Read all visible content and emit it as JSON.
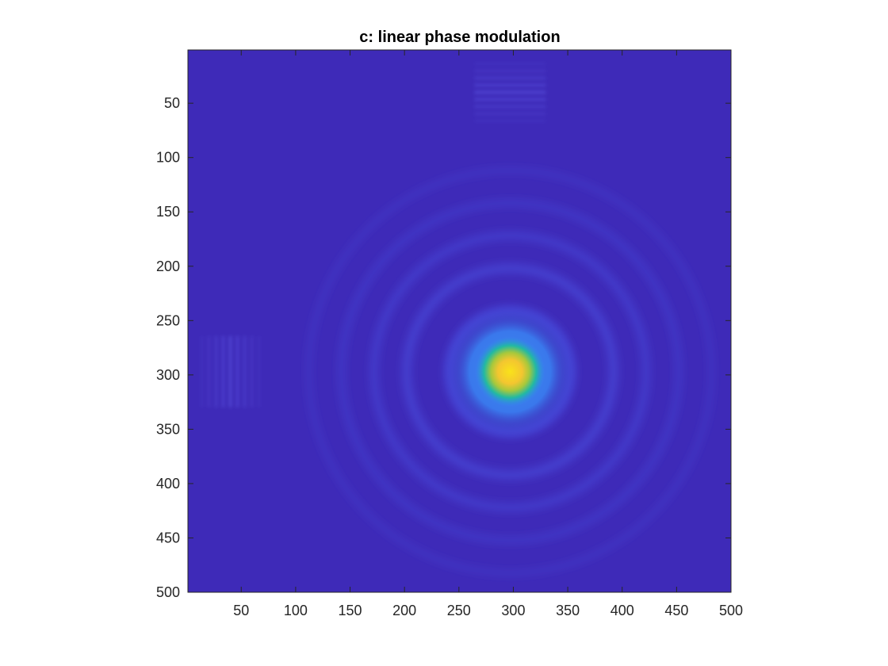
{
  "chart_data": {
    "type": "heatmap",
    "title": "c: linear phase modulation",
    "xlabel": "",
    "ylabel": "",
    "xlim": [
      1,
      500
    ],
    "ylim": [
      1,
      500
    ],
    "y_direction": "reversed",
    "xticks": [
      50,
      100,
      150,
      200,
      250,
      300,
      350,
      400,
      450,
      500
    ],
    "yticks": [
      50,
      100,
      150,
      200,
      250,
      300,
      350,
      400,
      450,
      500
    ],
    "colormap": "parula",
    "colors": {
      "background": "#3e2ab8",
      "ring": "#4a53e6",
      "peak_center": "#f5d31c",
      "peak_edge": "#1fb7a8"
    },
    "grid": false,
    "legend": "none",
    "peak": {
      "x": 297,
      "y": 297
    },
    "rings": [
      {
        "radius": 55,
        "level": 0.35
      },
      {
        "radius": 95,
        "level": 0.22
      },
      {
        "radius": 125,
        "level": 0.18
      },
      {
        "radius": 155,
        "level": 0.14
      },
      {
        "radius": 185,
        "level": 0.1
      }
    ],
    "side_lobes": [
      {
        "x": 297,
        "y": 40,
        "orientation": "horizontal-fringes"
      },
      {
        "x": 40,
        "y": 297,
        "orientation": "vertical-fringes"
      }
    ]
  }
}
